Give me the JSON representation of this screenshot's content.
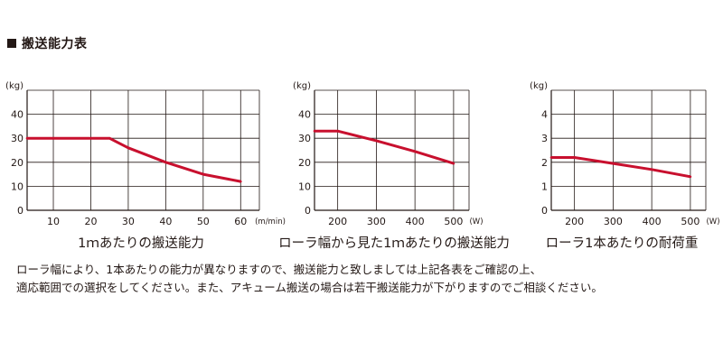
{
  "header": {
    "title": "搬送能力表"
  },
  "chart_data": [
    {
      "type": "line",
      "caption": "1ｍあたりの搬送能力",
      "ylabel": "(kg)",
      "xunit": "(m/min)",
      "xlim": [
        3,
        65
      ],
      "ylim": [
        0,
        50
      ],
      "x_ticks": [
        10,
        20,
        30,
        40,
        50,
        60
      ],
      "y_ticks": [
        0,
        10,
        20,
        30,
        40
      ],
      "grid": true,
      "color": "#c8102e",
      "points": [
        [
          3,
          30
        ],
        [
          25,
          30
        ],
        [
          30,
          26
        ],
        [
          40,
          20
        ],
        [
          50,
          15
        ],
        [
          60,
          12
        ]
      ]
    },
    {
      "type": "line",
      "caption": "ローラ幅から見た1ｍあたりの搬送能力",
      "ylabel": "(kg)",
      "xunit": "(W)",
      "xlim": [
        140,
        540
      ],
      "ylim": [
        0,
        50
      ],
      "x_ticks": [
        200,
        300,
        400,
        500
      ],
      "y_ticks": [
        0,
        10,
        20,
        30,
        40
      ],
      "grid": true,
      "color": "#c8102e",
      "points": [
        [
          140,
          33
        ],
        [
          200,
          33
        ],
        [
          300,
          29
        ],
        [
          400,
          24.5
        ],
        [
          500,
          19.5
        ]
      ]
    },
    {
      "type": "line",
      "caption": "ローラ1本あたりの耐荷重",
      "ylabel": "(kg)",
      "xunit": "(W)",
      "xlim": [
        140,
        540
      ],
      "ylim": [
        0,
        5
      ],
      "x_ticks": [
        200,
        300,
        400,
        500
      ],
      "y_ticks": [
        0,
        1,
        2,
        3,
        4
      ],
      "grid": true,
      "color": "#c8102e",
      "points": [
        [
          140,
          2.2
        ],
        [
          200,
          2.2
        ],
        [
          300,
          1.95
        ],
        [
          400,
          1.7
        ],
        [
          500,
          1.4
        ]
      ]
    }
  ],
  "notes": [
    "ローラ幅により、1本あたりの能力が異なりますので、搬送能力と致しましては上記各表をご確認の上、",
    "適応範囲での選択をしてください。また、アキューム搬送の場合は若干搬送能力が下がりますのでご相談ください。"
  ]
}
